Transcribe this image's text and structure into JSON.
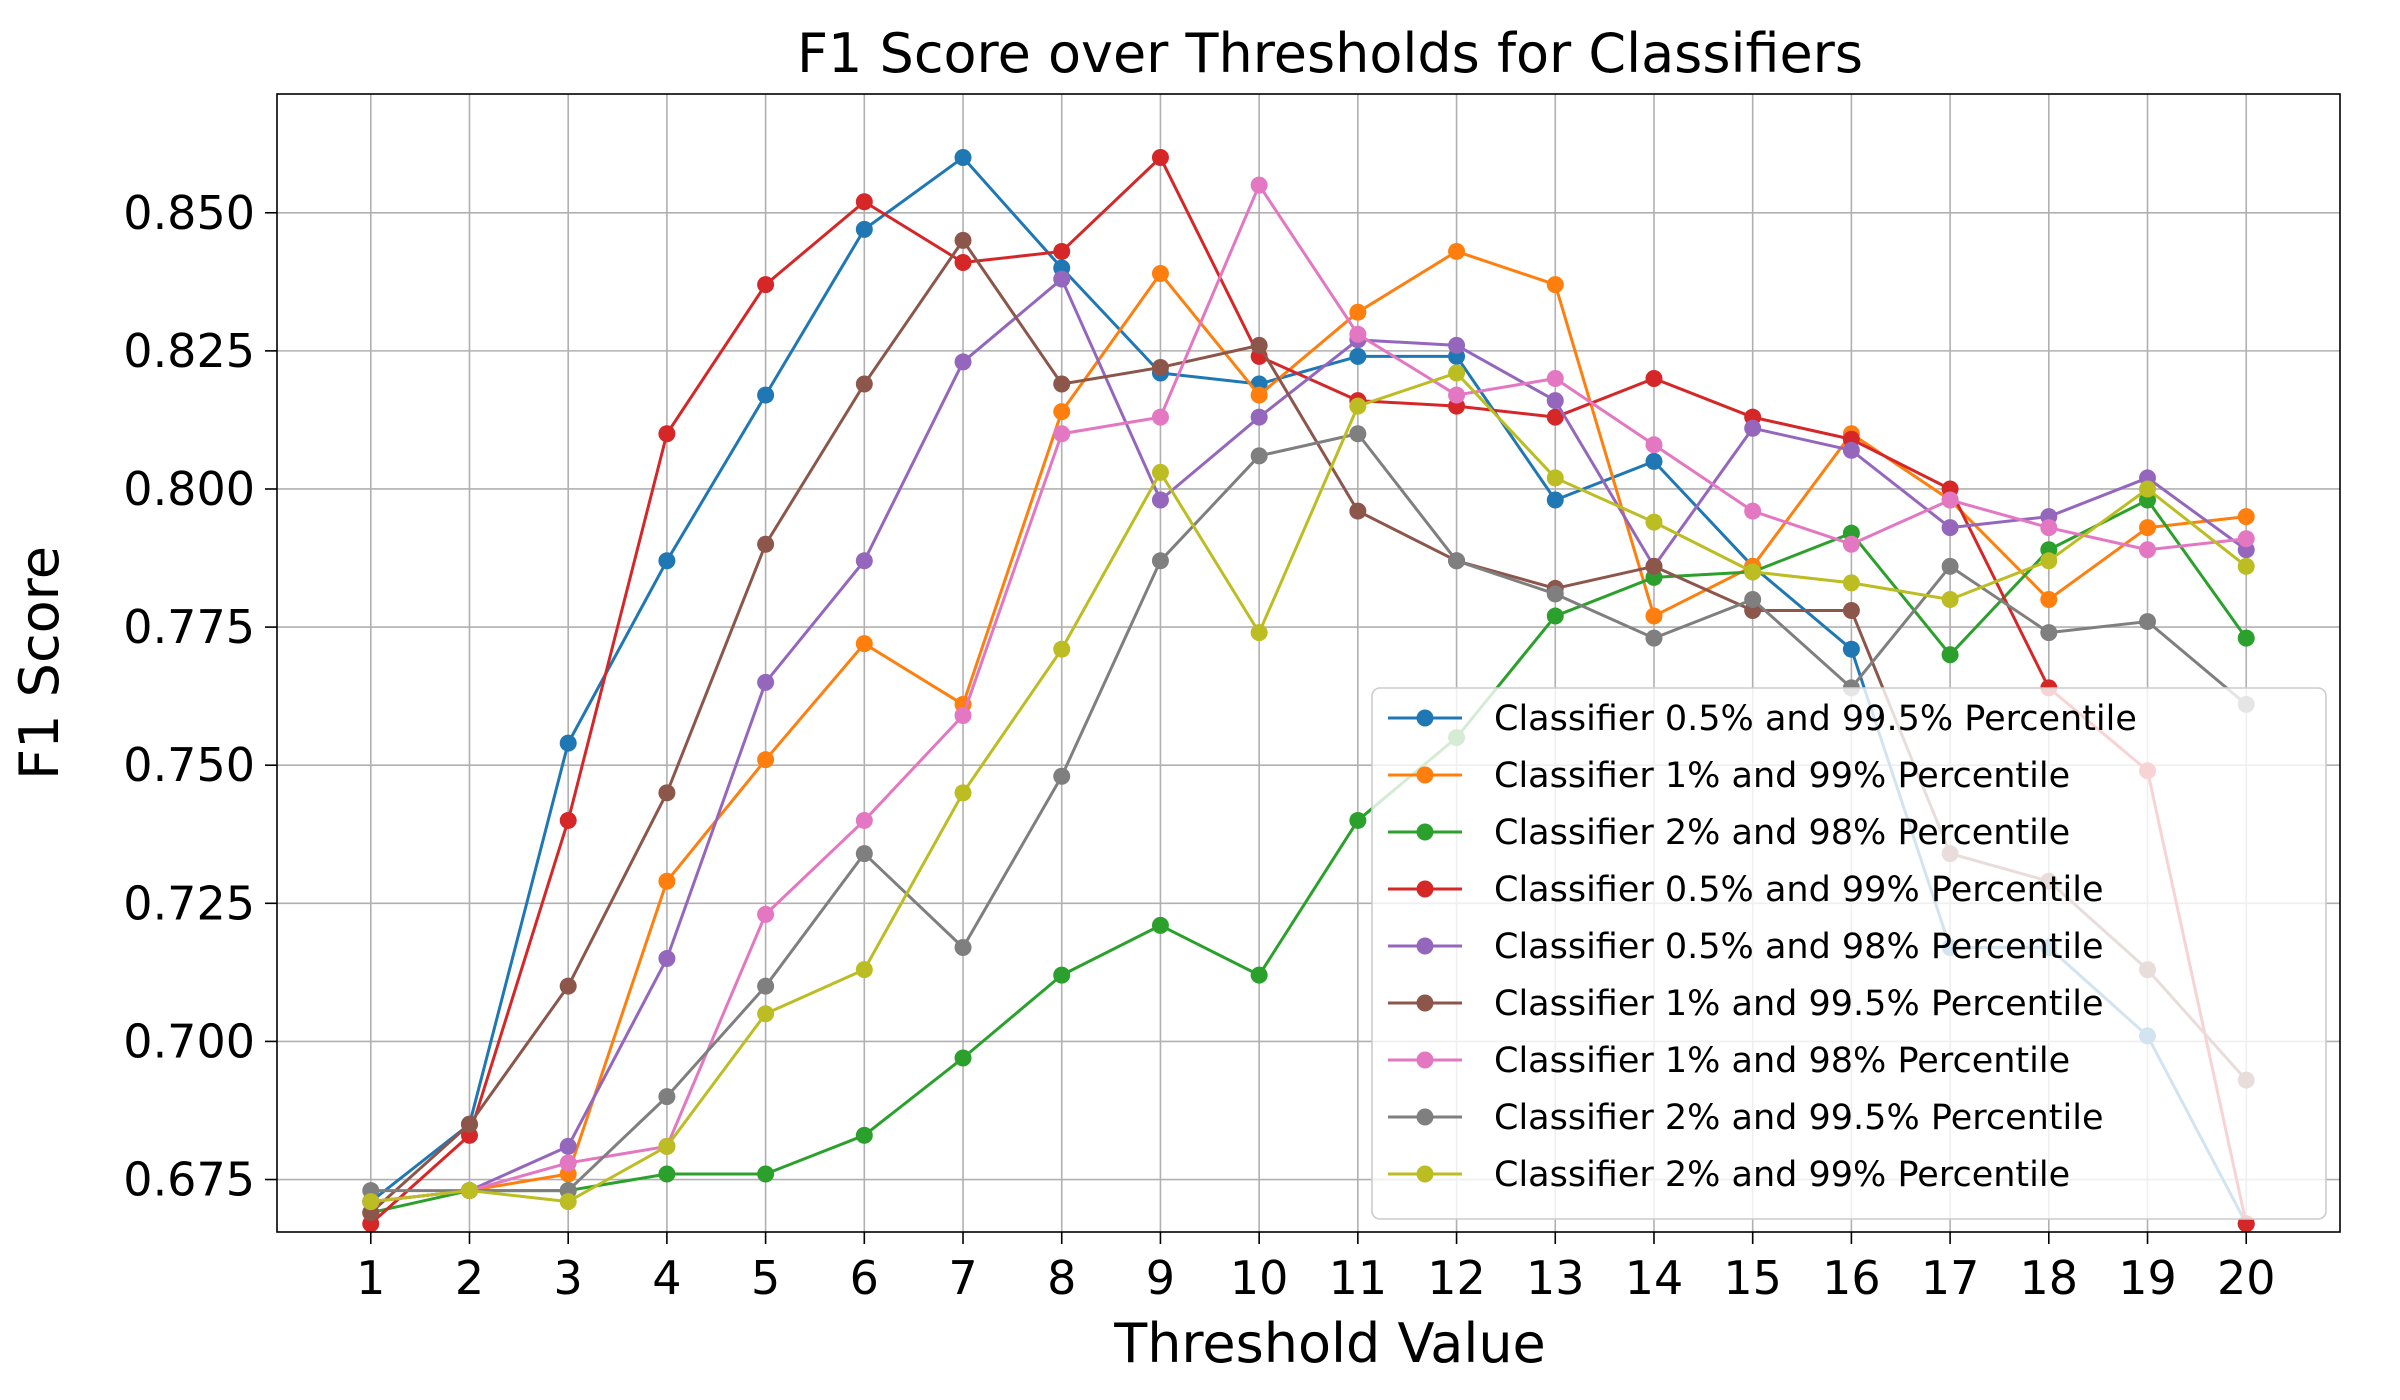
{
  "chart_data": {
    "type": "line",
    "title": "F1 Score over Thresholds for Classifiers",
    "xlabel": "Threshold Value",
    "ylabel": "F1 Score",
    "x": [
      1,
      2,
      3,
      4,
      5,
      6,
      7,
      8,
      9,
      10,
      11,
      12,
      13,
      14,
      15,
      16,
      17,
      18,
      19,
      20
    ],
    "xticks": [
      "1",
      "2",
      "3",
      "4",
      "5",
      "6",
      "7",
      "8",
      "9",
      "10",
      "11",
      "12",
      "13",
      "14",
      "15",
      "16",
      "17",
      "18",
      "19",
      "20"
    ],
    "xlim": [
      0.05,
      20.95
    ],
    "ylim": [
      0.6655,
      0.8715
    ],
    "yticks": [
      {
        "value": 0.675,
        "label": "0.675"
      },
      {
        "value": 0.7,
        "label": "0.700"
      },
      {
        "value": 0.725,
        "label": "0.725"
      },
      {
        "value": 0.75,
        "label": "0.750"
      },
      {
        "value": 0.775,
        "label": "0.775"
      },
      {
        "value": 0.8,
        "label": "0.800"
      },
      {
        "value": 0.825,
        "label": "0.825"
      },
      {
        "value": 0.85,
        "label": "0.850"
      }
    ],
    "grid": true,
    "legend_position": "lower-right",
    "series": [
      {
        "name": "Classifier 0.5% and 99.5% Percentile",
        "color": "#1f77b4",
        "values": [
          0.671,
          0.685,
          0.754,
          0.787,
          0.817,
          0.847,
          0.86,
          0.84,
          0.821,
          0.819,
          0.824,
          0.824,
          0.798,
          0.805,
          0.786,
          0.771,
          0.717,
          0.717,
          0.701,
          0.667
        ]
      },
      {
        "name": "Classifier 1% and 99% Percentile",
        "color": "#ff7f0e",
        "values": [
          0.671,
          0.673,
          0.676,
          0.729,
          0.751,
          0.772,
          0.761,
          0.814,
          0.839,
          0.817,
          0.832,
          0.843,
          0.837,
          0.777,
          0.786,
          0.81,
          0.798,
          0.78,
          0.793,
          0.795
        ]
      },
      {
        "name": "Classifier 2% and 98% Percentile",
        "color": "#2ca02c",
        "values": [
          0.669,
          0.673,
          0.673,
          0.676,
          0.676,
          0.683,
          0.697,
          0.712,
          0.721,
          0.712,
          0.74,
          0.755,
          0.777,
          0.784,
          0.785,
          0.792,
          0.77,
          0.789,
          0.798,
          0.773
        ]
      },
      {
        "name": "Classifier 0.5% and 99% Percentile",
        "color": "#d62728",
        "values": [
          0.667,
          0.683,
          0.74,
          0.81,
          0.837,
          0.852,
          0.841,
          0.843,
          0.86,
          0.824,
          0.816,
          0.815,
          0.813,
          0.82,
          0.813,
          0.809,
          0.8,
          0.764,
          0.749,
          0.667
        ]
      },
      {
        "name": "Classifier 0.5% and 98% Percentile",
        "color": "#9467bd",
        "values": [
          0.671,
          0.673,
          0.681,
          0.715,
          0.765,
          0.787,
          0.823,
          0.838,
          0.798,
          0.813,
          0.827,
          0.826,
          0.816,
          0.786,
          0.811,
          0.807,
          0.793,
          0.795,
          0.802,
          0.789
        ]
      },
      {
        "name": "Classifier 1% and 99.5% Percentile",
        "color": "#8c564b",
        "values": [
          0.669,
          0.685,
          0.71,
          0.745,
          0.79,
          0.819,
          0.845,
          0.819,
          0.822,
          0.826,
          0.796,
          0.787,
          0.782,
          0.786,
          0.778,
          0.778,
          0.734,
          0.729,
          0.713,
          0.693
        ]
      },
      {
        "name": "Classifier 1% and 98% Percentile",
        "color": "#e377c2",
        "values": [
          0.671,
          0.673,
          0.678,
          0.681,
          0.723,
          0.74,
          0.759,
          0.81,
          0.813,
          0.855,
          0.828,
          0.817,
          0.82,
          0.808,
          0.796,
          0.79,
          0.798,
          0.793,
          0.789,
          0.791
        ]
      },
      {
        "name": "Classifier 2% and 99.5% Percentile",
        "color": "#7f7f7f",
        "values": [
          0.673,
          0.673,
          0.673,
          0.69,
          0.71,
          0.734,
          0.717,
          0.748,
          0.787,
          0.806,
          0.81,
          0.787,
          0.781,
          0.773,
          0.78,
          0.764,
          0.786,
          0.774,
          0.776,
          0.761
        ]
      },
      {
        "name": "Classifier 2% and 99% Percentile",
        "color": "#bcbd22",
        "values": [
          0.671,
          0.673,
          0.671,
          0.681,
          0.705,
          0.713,
          0.745,
          0.771,
          0.803,
          0.774,
          0.815,
          0.821,
          0.802,
          0.794,
          0.785,
          0.783,
          0.78,
          0.787,
          0.8,
          0.786
        ]
      }
    ]
  }
}
